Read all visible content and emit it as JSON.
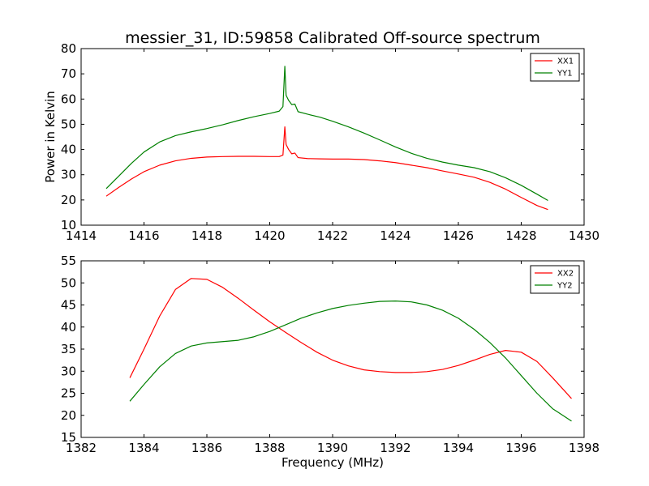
{
  "figure": {
    "title": "messier_31, ID:59858 Calibrated Off-source spectrum"
  },
  "chart_data": [
    {
      "type": "line",
      "title": "messier_31, ID:59858 Calibrated Off-source spectrum",
      "xlabel": "",
      "ylabel": "Power in Kelvin",
      "xlim": [
        1414,
        1430
      ],
      "ylim": [
        10,
        80
      ],
      "xticks": [
        "1414",
        "1416",
        "1418",
        "1420",
        "1422",
        "1424",
        "1426",
        "1428",
        "1430"
      ],
      "yticks": [
        "10",
        "20",
        "30",
        "40",
        "50",
        "60",
        "70",
        "80"
      ],
      "grid": false,
      "legend": "top-right",
      "series": [
        {
          "name": "XX1",
          "color": "#ff0000",
          "x": [
            1414.8,
            1415.2,
            1415.6,
            1416.0,
            1416.5,
            1417.0,
            1417.5,
            1418.0,
            1418.5,
            1419.0,
            1419.5,
            1420.0,
            1420.3,
            1420.42,
            1420.48,
            1420.52,
            1420.6,
            1420.7,
            1420.8,
            1420.9,
            1421.2,
            1421.6,
            1422.0,
            1422.5,
            1423.0,
            1423.5,
            1424.0,
            1424.5,
            1425.0,
            1425.5,
            1426.0,
            1426.5,
            1427.0,
            1427.5,
            1428.0,
            1428.5,
            1428.85
          ],
          "y": [
            21.5,
            25.0,
            28.3,
            31.2,
            33.8,
            35.5,
            36.5,
            37.0,
            37.2,
            37.3,
            37.3,
            37.2,
            37.2,
            37.8,
            49.0,
            42.0,
            40.0,
            38.3,
            38.6,
            36.8,
            36.4,
            36.3,
            36.2,
            36.2,
            36.0,
            35.5,
            34.8,
            33.8,
            32.8,
            31.5,
            30.3,
            29.0,
            27.0,
            24.3,
            21.0,
            17.8,
            16.2
          ]
        },
        {
          "name": "YY1",
          "color": "#008000",
          "x": [
            1414.8,
            1415.2,
            1415.6,
            1416.0,
            1416.5,
            1417.0,
            1417.5,
            1418.0,
            1418.5,
            1419.0,
            1419.5,
            1420.0,
            1420.3,
            1420.42,
            1420.48,
            1420.52,
            1420.6,
            1420.7,
            1420.8,
            1420.9,
            1421.2,
            1421.6,
            1422.0,
            1422.5,
            1423.0,
            1423.5,
            1424.0,
            1424.5,
            1425.0,
            1425.5,
            1426.0,
            1426.5,
            1427.0,
            1427.5,
            1428.0,
            1428.5,
            1428.85
          ],
          "y": [
            24.5,
            29.5,
            34.5,
            39.0,
            43.0,
            45.5,
            47.0,
            48.3,
            49.8,
            51.5,
            53.0,
            54.3,
            55.2,
            57.0,
            73.0,
            61.5,
            59.5,
            57.8,
            58.0,
            55.0,
            54.0,
            52.8,
            51.2,
            49.0,
            46.5,
            43.8,
            41.0,
            38.5,
            36.5,
            35.0,
            33.8,
            32.8,
            31.2,
            28.8,
            25.8,
            22.3,
            19.8
          ]
        }
      ]
    },
    {
      "type": "line",
      "title": "",
      "xlabel": "Frequency (MHz)",
      "ylabel": "",
      "xlim": [
        1382,
        1398
      ],
      "ylim": [
        15,
        55
      ],
      "xticks": [
        "1382",
        "1384",
        "1386",
        "1388",
        "1390",
        "1392",
        "1394",
        "1396",
        "1398"
      ],
      "yticks": [
        "15",
        "20",
        "25",
        "30",
        "35",
        "40",
        "45",
        "50",
        "55"
      ],
      "grid": false,
      "legend": "top-right",
      "series": [
        {
          "name": "XX2",
          "color": "#ff0000",
          "x": [
            1383.55,
            1384.0,
            1384.5,
            1385.0,
            1385.5,
            1386.0,
            1386.5,
            1387.0,
            1387.5,
            1388.0,
            1388.5,
            1389.0,
            1389.5,
            1390.0,
            1390.5,
            1391.0,
            1391.5,
            1392.0,
            1392.5,
            1393.0,
            1393.5,
            1394.0,
            1394.5,
            1395.0,
            1395.5,
            1396.0,
            1396.5,
            1397.0,
            1397.6
          ],
          "y": [
            28.5,
            35.0,
            42.5,
            48.5,
            51.0,
            50.8,
            49.0,
            46.5,
            43.8,
            41.2,
            38.8,
            36.5,
            34.3,
            32.5,
            31.2,
            30.3,
            29.9,
            29.7,
            29.7,
            29.9,
            30.4,
            31.3,
            32.5,
            33.8,
            34.7,
            34.3,
            32.2,
            28.5,
            23.8
          ]
        },
        {
          "name": "YY2",
          "color": "#008000",
          "x": [
            1383.55,
            1384.0,
            1384.5,
            1385.0,
            1385.5,
            1386.0,
            1386.5,
            1387.0,
            1387.5,
            1388.0,
            1388.5,
            1389.0,
            1389.5,
            1390.0,
            1390.5,
            1391.0,
            1391.5,
            1392.0,
            1392.5,
            1393.0,
            1393.5,
            1394.0,
            1394.5,
            1395.0,
            1395.5,
            1396.0,
            1396.5,
            1397.0,
            1397.6
          ],
          "y": [
            23.2,
            27.0,
            31.0,
            34.0,
            35.7,
            36.4,
            36.7,
            37.0,
            37.8,
            39.0,
            40.5,
            42.0,
            43.2,
            44.2,
            44.9,
            45.4,
            45.8,
            45.9,
            45.7,
            45.0,
            43.8,
            42.0,
            39.5,
            36.5,
            33.0,
            29.0,
            25.0,
            21.5,
            18.7
          ]
        }
      ]
    }
  ]
}
